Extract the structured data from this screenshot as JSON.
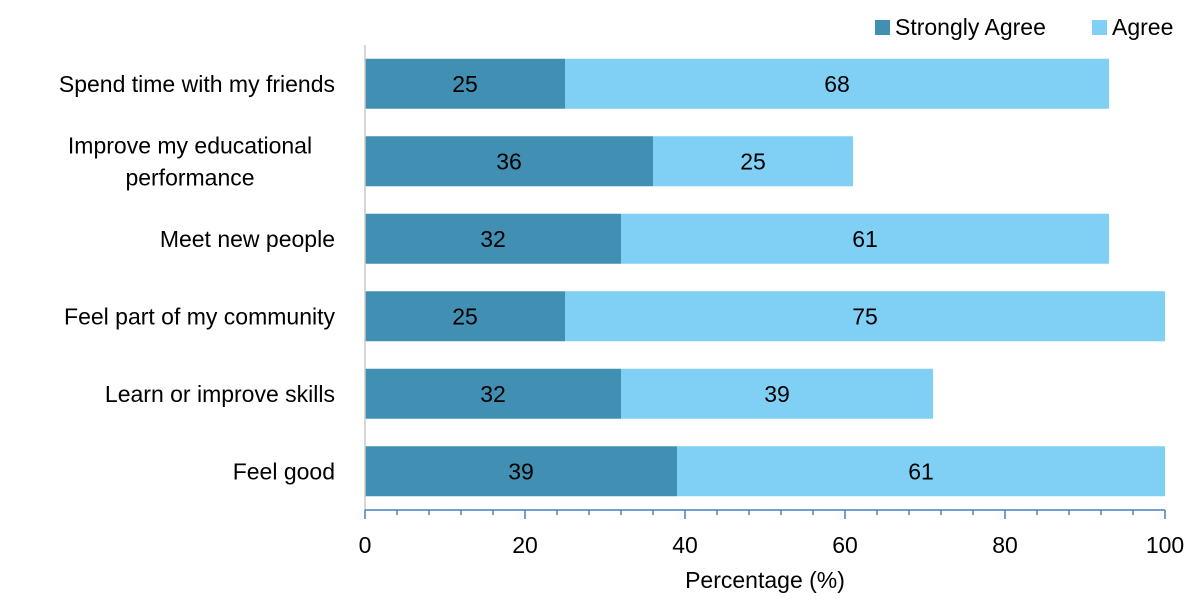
{
  "chart_data": {
    "type": "bar",
    "orientation": "horizontal",
    "stacked": true,
    "categories": [
      [
        "Spend time with my friends"
      ],
      [
        "Improve my educational",
        "performance"
      ],
      [
        "Meet new people"
      ],
      [
        "Feel part of my community"
      ],
      [
        "Learn or improve skills"
      ],
      [
        "Feel good"
      ]
    ],
    "series": [
      {
        "name": "Strongly Agree",
        "color": "#418FB2",
        "values": [
          25,
          36,
          32,
          25,
          32,
          39
        ]
      },
      {
        "name": "Agree",
        "color": "#80CFF4",
        "values": [
          68,
          25,
          61,
          75,
          39,
          61
        ]
      }
    ],
    "xlabel": "Percentage (%)",
    "ylabel": "",
    "xlim": [
      0,
      100
    ],
    "xticks": [
      "0",
      "20",
      "40",
      "60",
      "80",
      "100"
    ],
    "grid": false,
    "legend_position": "top-right",
    "axis_color": "#4A7EBB"
  }
}
